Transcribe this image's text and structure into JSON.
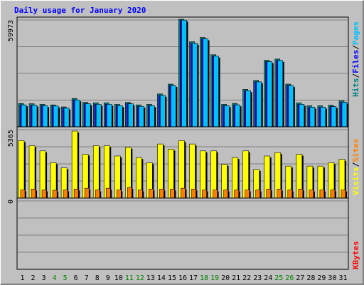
{
  "chart_data": [
    {
      "type": "bar",
      "panel": "top",
      "title": "Daily usage for January 2020",
      "categories": [
        "1",
        "2",
        "3",
        "4",
        "5",
        "6",
        "7",
        "8",
        "9",
        "10",
        "11",
        "12",
        "13",
        "14",
        "15",
        "16",
        "17",
        "18",
        "19",
        "20",
        "21",
        "22",
        "23",
        "24",
        "25",
        "26",
        "27",
        "28",
        "29",
        "30",
        "31"
      ],
      "weekend_days": [
        "4",
        "5",
        "11",
        "12",
        "18",
        "19",
        "25",
        "26"
      ],
      "ymax_label": "59973",
      "ylim": [
        0,
        59973
      ],
      "grid": true,
      "series": [
        {
          "name": "Hits",
          "color": "#008080",
          "values": [
            13036,
            12878,
            12556,
            12236,
            11110,
            15771,
            13689,
            13358,
            13358,
            12556,
            13598,
            12236,
            12556,
            18346,
            23816,
            59973,
            47421,
            49830,
            40193,
            12556,
            13036,
            20909,
            25886,
            37141,
            37784,
            23816,
            13358,
            11754,
            11754,
            12071,
            14481
          ]
        },
        {
          "name": "Files",
          "color": "#0000ff",
          "values": [
            12236,
            12078,
            11754,
            11593,
            10468,
            14971,
            12878,
            12556,
            12556,
            11754,
            12878,
            11432,
            11754,
            17544,
            23013,
            59490,
            46618,
            49027,
            39389,
            11754,
            12236,
            20106,
            25083,
            36338,
            36982,
            23013,
            12556,
            10946,
            10946,
            11271,
            13679
          ]
        },
        {
          "name": "Pages",
          "color": "#00c0ff",
          "values": [
            12236,
            12078,
            11754,
            11593,
            10468,
            14971,
            12878,
            12556,
            12556,
            11754,
            12878,
            11432,
            11754,
            17544,
            23013,
            59490,
            46618,
            49027,
            39389,
            11754,
            12236,
            20106,
            25083,
            36338,
            36982,
            23013,
            12556,
            10946,
            10946,
            11271,
            13679
          ]
        }
      ]
    },
    {
      "type": "bar",
      "panel": "middle",
      "ymax_label": "5365",
      "ylim": [
        0,
        5365
      ],
      "grid": true,
      "series": [
        {
          "name": "Visits",
          "color": "#ffff00",
          "values": [
            4600,
            4190,
            3780,
            2830,
            2420,
            5365,
            3510,
            4190,
            4190,
            3370,
            4060,
            3240,
            2830,
            4330,
            3920,
            4600,
            4330,
            3780,
            3780,
            2700,
            3240,
            3780,
            2290,
            3370,
            3640,
            2560,
            3510,
            2560,
            2560,
            2830,
            3100
          ]
        },
        {
          "name": "Sites",
          "color": "#ff8000",
          "values": [
            650,
            720,
            650,
            630,
            650,
            720,
            790,
            650,
            790,
            650,
            850,
            650,
            720,
            720,
            720,
            790,
            720,
            650,
            650,
            650,
            650,
            650,
            650,
            720,
            720,
            650,
            720,
            650,
            650,
            650,
            650
          ]
        }
      ]
    },
    {
      "type": "bar",
      "panel": "bottom",
      "ymax_label": "0",
      "ylim": [
        0,
        1
      ],
      "grid": true,
      "series": [
        {
          "name": "KBytes",
          "color": "#ff0000",
          "values": [
            0,
            0,
            0,
            0,
            0,
            0,
            0,
            0,
            0,
            0,
            0,
            0,
            0,
            0,
            0,
            0,
            0,
            0,
            0,
            0,
            0,
            0,
            0,
            0,
            0,
            0,
            0,
            0,
            0,
            0,
            0
          ]
        }
      ]
    }
  ],
  "right_labels": {
    "top": [
      {
        "text": "Hits",
        "color": "#008080"
      },
      {
        "text": "/",
        "color": "#000000"
      },
      {
        "text": "Files",
        "color": "#0000ff"
      },
      {
        "text": "/",
        "color": "#000000"
      },
      {
        "text": "Pages",
        "color": "#00c0ff"
      }
    ],
    "middle": [
      {
        "text": "Visits",
        "color": "#ffff00"
      },
      {
        "text": "/",
        "color": "#000000"
      },
      {
        "text": "Sites",
        "color": "#ff8000"
      }
    ],
    "bottom": [
      {
        "text": "KBytes",
        "color": "#ff0000"
      }
    ]
  },
  "colors": {
    "title": "#0000ff",
    "frame_bg": "#c0c0c0",
    "plot_bg": "#c0c0c0",
    "grid": "#808080",
    "weekday_label": "#000000",
    "weekend_label": "#008000"
  }
}
